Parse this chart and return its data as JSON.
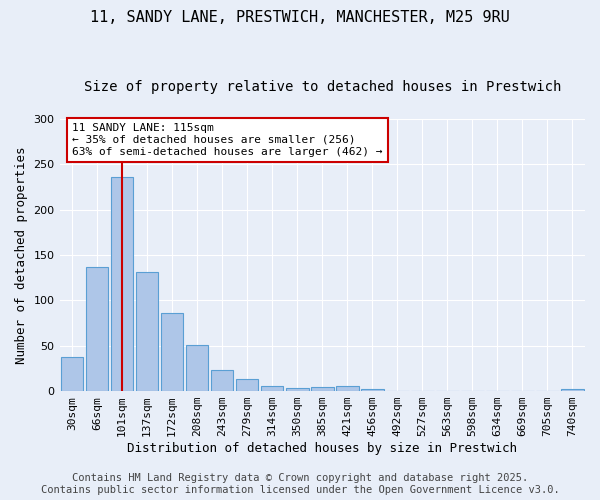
{
  "title": "11, SANDY LANE, PRESTWICH, MANCHESTER, M25 9RU",
  "subtitle": "Size of property relative to detached houses in Prestwich",
  "xlabel": "Distribution of detached houses by size in Prestwich",
  "ylabel": "Number of detached properties",
  "categories": [
    "30sqm",
    "66sqm",
    "101sqm",
    "137sqm",
    "172sqm",
    "208sqm",
    "243sqm",
    "279sqm",
    "314sqm",
    "350sqm",
    "385sqm",
    "421sqm",
    "456sqm",
    "492sqm",
    "527sqm",
    "563sqm",
    "598sqm",
    "634sqm",
    "669sqm",
    "705sqm",
    "740sqm"
  ],
  "values": [
    38,
    137,
    236,
    131,
    86,
    51,
    23,
    13,
    6,
    3,
    5,
    6,
    2,
    0,
    0,
    0,
    0,
    0,
    0,
    0,
    2
  ],
  "bar_color": "#aec6e8",
  "bar_edge_color": "#5a9fd4",
  "reference_line_x": 2.0,
  "annotation_text": "11 SANDY LANE: 115sqm\n← 35% of detached houses are smaller (256)\n63% of semi-detached houses are larger (462) →",
  "annotation_box_color": "#ffffff",
  "annotation_box_edge_color": "#cc0000",
  "ref_line_color": "#cc0000",
  "ylim": [
    0,
    300
  ],
  "yticks": [
    0,
    50,
    100,
    150,
    200,
    250,
    300
  ],
  "footer_text": "Contains HM Land Registry data © Crown copyright and database right 2025.\nContains public sector information licensed under the Open Government Licence v3.0.",
  "bg_color": "#e8eef8",
  "grid_color": "#ffffff",
  "title_fontsize": 11,
  "subtitle_fontsize": 10,
  "axis_fontsize": 9,
  "tick_fontsize": 8,
  "footer_fontsize": 7.5,
  "annotation_fontsize": 8
}
